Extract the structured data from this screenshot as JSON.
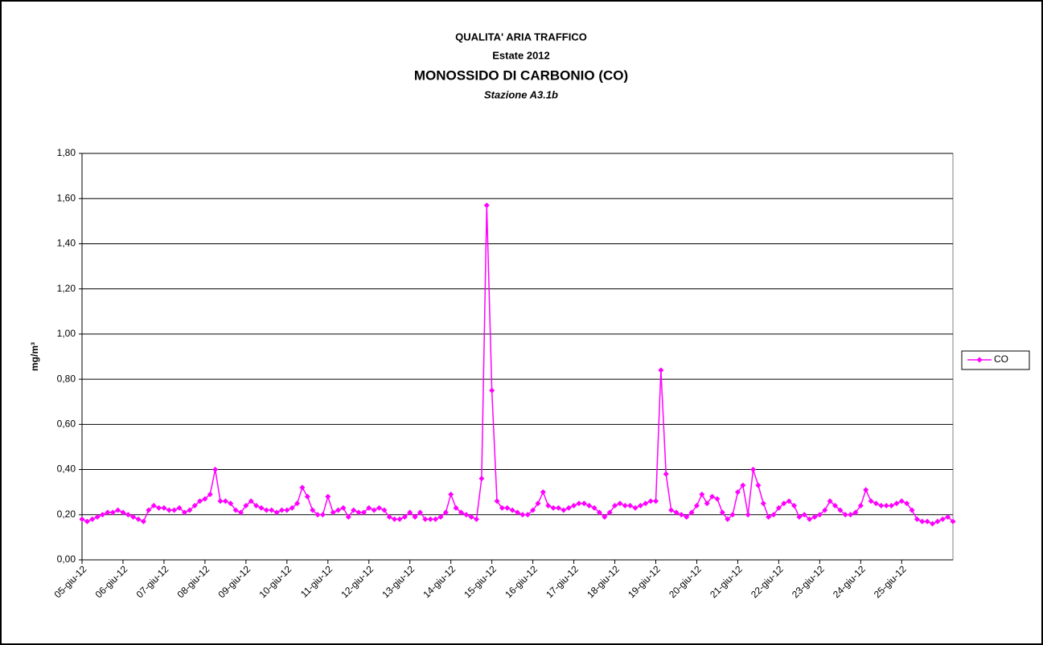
{
  "chart_data": {
    "type": "line",
    "title": "QUALITA' ARIA TRAFFICO",
    "subtitle": "Estate 2012",
    "title2": "MONOSSIDO DI CARBONIO (CO)",
    "subtitle2": "Stazione A3.1b",
    "ylabel": "mg/m³",
    "categories": [
      "05-giu-12",
      null,
      null,
      null,
      null,
      null,
      null,
      null,
      "06-giu-12",
      null,
      null,
      null,
      null,
      null,
      null,
      null,
      "07-giu-12",
      null,
      null,
      null,
      null,
      null,
      null,
      null,
      "08-giu-12",
      null,
      null,
      null,
      null,
      null,
      null,
      null,
      "09-giu-12",
      null,
      null,
      null,
      null,
      null,
      null,
      null,
      "10-giu-12",
      null,
      null,
      null,
      null,
      null,
      null,
      null,
      "11-giu-12",
      null,
      null,
      null,
      null,
      null,
      null,
      null,
      "12-giu-12",
      null,
      null,
      null,
      null,
      null,
      null,
      null,
      "13-giu-12",
      null,
      null,
      null,
      null,
      null,
      null,
      null,
      "14-giu-12",
      null,
      null,
      null,
      null,
      null,
      null,
      null,
      "15-giu-12",
      null,
      null,
      null,
      null,
      null,
      null,
      null,
      "16-giu-12",
      null,
      null,
      null,
      null,
      null,
      null,
      null,
      "17-giu-12",
      null,
      null,
      null,
      null,
      null,
      null,
      null,
      "18-giu-12",
      null,
      null,
      null,
      null,
      null,
      null,
      null,
      "19-giu-12",
      null,
      null,
      null,
      null,
      null,
      null,
      null,
      "20-giu-12",
      null,
      null,
      null,
      null,
      null,
      null,
      null,
      "21-giu-12",
      null,
      null,
      null,
      null,
      null,
      null,
      null,
      "22-giu-12",
      null,
      null,
      null,
      null,
      null,
      null,
      null,
      "23-giu-12",
      null,
      null,
      null,
      null,
      null,
      null,
      null,
      "24-giu-12",
      null,
      null,
      null,
      null,
      null,
      null,
      null,
      "25-giu-12",
      null,
      null,
      null,
      null,
      null,
      null,
      null,
      null,
      null,
      null
    ],
    "series": [
      {
        "name": "CO",
        "color": "#ff00ff",
        "values": [
          0.18,
          0.17,
          0.18,
          0.19,
          0.2,
          0.21,
          0.21,
          0.22,
          0.21,
          0.2,
          0.19,
          0.18,
          0.17,
          0.22,
          0.24,
          0.23,
          0.23,
          0.22,
          0.22,
          0.23,
          0.21,
          0.22,
          0.24,
          0.26,
          0.27,
          0.29,
          0.4,
          0.26,
          0.26,
          0.25,
          0.22,
          0.21,
          0.24,
          0.26,
          0.24,
          0.23,
          0.22,
          0.22,
          0.21,
          0.22,
          0.22,
          0.23,
          0.25,
          0.32,
          0.28,
          0.22,
          0.2,
          0.2,
          0.28,
          0.21,
          0.22,
          0.23,
          0.19,
          0.22,
          0.21,
          0.21,
          0.23,
          0.22,
          0.23,
          0.22,
          0.19,
          0.18,
          0.18,
          0.19,
          0.21,
          0.19,
          0.21,
          0.18,
          0.18,
          0.18,
          0.19,
          0.21,
          0.29,
          0.23,
          0.21,
          0.2,
          0.19,
          0.18,
          0.36,
          1.57,
          0.75,
          0.26,
          0.23,
          0.23,
          0.22,
          0.21,
          0.2,
          0.2,
          0.22,
          0.25,
          0.3,
          0.24,
          0.23,
          0.23,
          0.22,
          0.23,
          0.24,
          0.25,
          0.25,
          0.24,
          0.23,
          0.21,
          0.19,
          0.21,
          0.24,
          0.25,
          0.24,
          0.24,
          0.23,
          0.24,
          0.25,
          0.26,
          0.26,
          0.84,
          0.38,
          0.22,
          0.21,
          0.2,
          0.19,
          0.21,
          0.24,
          0.29,
          0.25,
          0.28,
          0.27,
          0.21,
          0.18,
          0.2,
          0.3,
          0.33,
          0.2,
          0.4,
          0.33,
          0.25,
          0.19,
          0.2,
          0.23,
          0.25,
          0.26,
          0.24,
          0.19,
          0.2,
          0.18,
          0.19,
          0.2,
          0.22,
          0.26,
          0.24,
          0.22,
          0.2,
          0.2,
          0.21,
          0.24,
          0.31,
          0.26,
          0.25,
          0.24,
          0.24,
          0.24,
          0.25,
          0.26,
          0.25,
          0.22,
          0.18,
          0.17,
          0.17,
          0.16,
          0.17,
          0.18,
          0.19,
          0.17
        ]
      }
    ],
    "ylim": [
      0,
      1.8
    ],
    "yticks": [
      {
        "value": 0,
        "label": "0,00"
      },
      {
        "value": 0.2,
        "label": "0,20"
      },
      {
        "value": 0.4,
        "label": "0,40"
      },
      {
        "value": 0.6,
        "label": "0,60"
      },
      {
        "value": 0.8,
        "label": "0,80"
      },
      {
        "value": 1.0,
        "label": "1,00"
      },
      {
        "value": 1.2,
        "label": "1,20"
      },
      {
        "value": 1.4,
        "label": "1,40"
      },
      {
        "value": 1.6,
        "label": "1,60"
      },
      {
        "value": 1.8,
        "label": "1,80"
      }
    ],
    "grid": true,
    "legend": "right"
  }
}
